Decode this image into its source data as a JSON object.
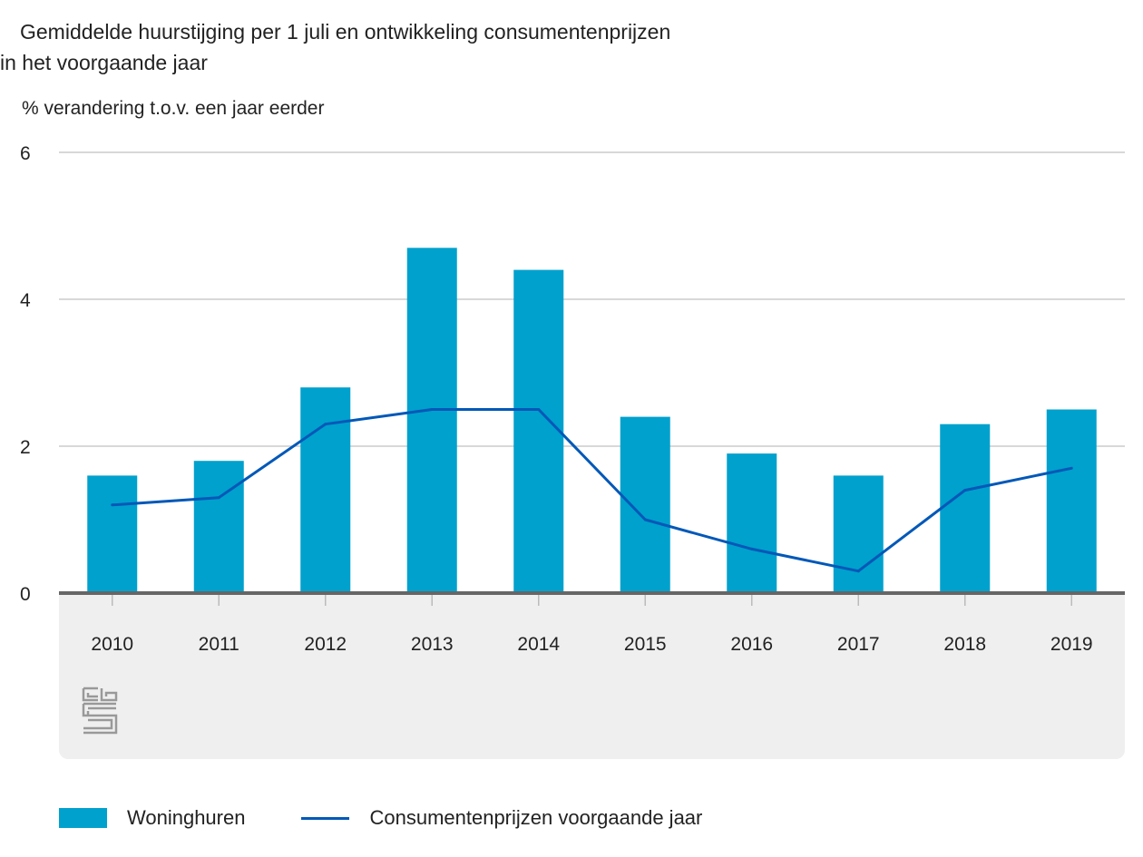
{
  "colors": {
    "bar": "#00a1cd",
    "line": "#0058b8",
    "grid": "#cccccc",
    "axis": "#666666",
    "footer_bg": "#efefef"
  },
  "chart_data": {
    "type": "bar",
    "title_line1": "Gemiddelde huurstijging per 1 juli en ontwikkeling consumentenprijzen",
    "title_line2": "in het voorgaande jaar",
    "ylabel": "% verandering t.o.v. een jaar eerder",
    "xlabel": "",
    "ylim": [
      0,
      6
    ],
    "yticks": [
      "0",
      "2",
      "4",
      "6"
    ],
    "categories": [
      "2010",
      "2011",
      "2012",
      "2013",
      "2014",
      "2015",
      "2016",
      "2017",
      "2018",
      "2019"
    ],
    "series": [
      {
        "name": "Woninghuren",
        "type": "bar",
        "values": [
          1.6,
          1.8,
          2.8,
          4.7,
          4.4,
          2.4,
          1.9,
          1.6,
          2.3,
          2.5
        ]
      },
      {
        "name": "Consumentenprijzen voorgaande jaar",
        "type": "line",
        "values": [
          1.2,
          1.3,
          2.3,
          2.5,
          2.5,
          1.0,
          0.6,
          0.3,
          1.4,
          1.7
        ]
      }
    ],
    "grid": true,
    "legend_position": "bottom-left"
  },
  "logo": {
    "name": "cbs-logo",
    "text": "cbs"
  }
}
